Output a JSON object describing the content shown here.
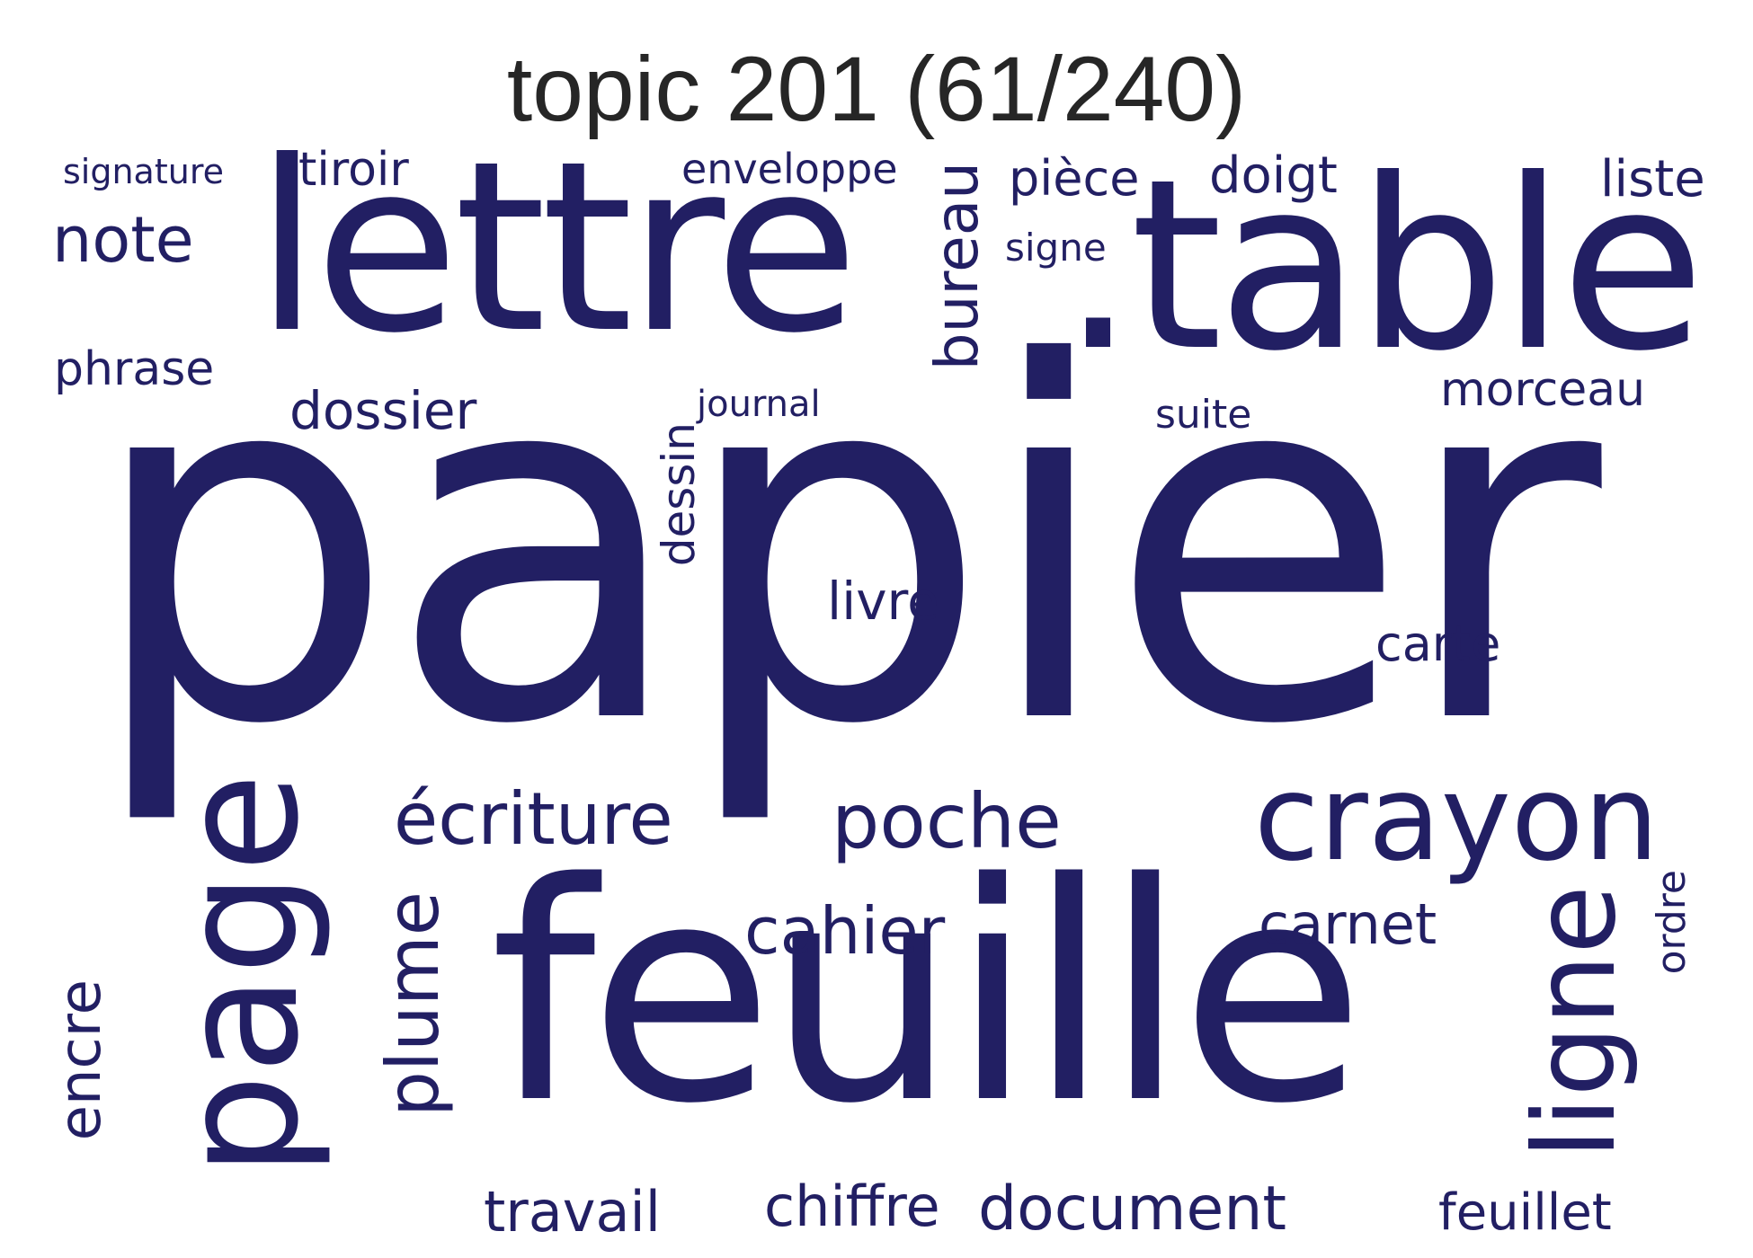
{
  "title": "topic 201 (61/240)",
  "colors": {
    "word": "#221f63",
    "title": "#262626",
    "background": "#ffffff"
  },
  "words": {
    "papier": "papier",
    "feuille": "feuille",
    "lettre": "lettre",
    "table": ".table",
    "page": "page",
    "crayon": "crayon",
    "ligne": "ligne",
    "ecriture": "écriture",
    "poche": "poche",
    "plume": "plume",
    "cahier": "cahier",
    "bureau": "bureau",
    "note": "note",
    "encre": "encre",
    "carnet": "carnet",
    "document": "document",
    "travail": "travail",
    "chiffre": "chiffre",
    "feuillet": "feuillet",
    "morceau": "morceau",
    "dossier": "dossier",
    "phrase": "phrase",
    "tiroir": "tiroir",
    "piece": "pièce",
    "doigt": "doigt",
    "liste": "liste",
    "enveloppe": "enveloppe",
    "signature": "signature",
    "signe": "signe",
    "journal": "journal",
    "suite": "suite",
    "dessin": "dessin",
    "livre": "livre",
    "carte": "carte",
    "ordre": "ordre"
  }
}
